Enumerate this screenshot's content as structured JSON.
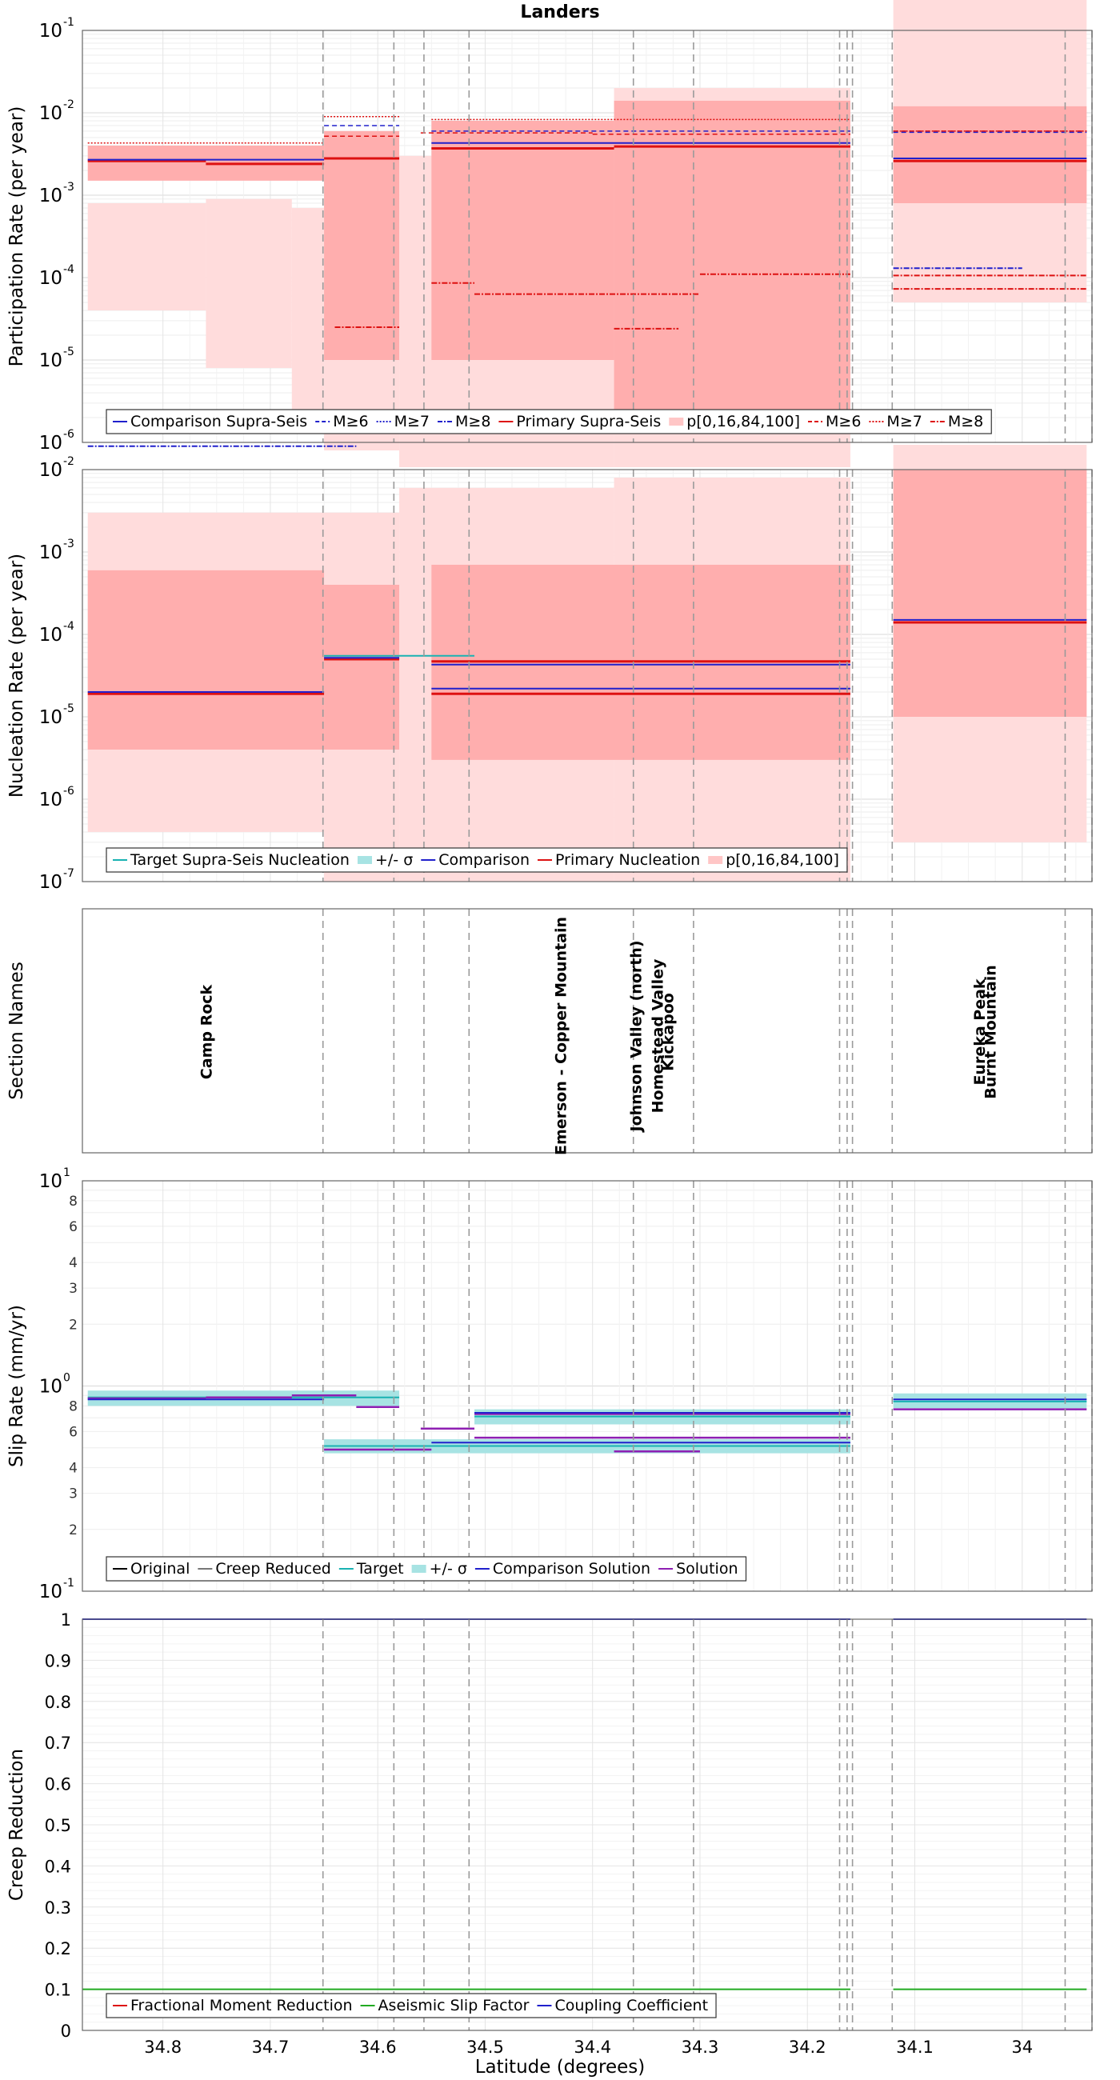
{
  "chart_data": [
    {
      "type": "line",
      "id": "participation",
      "title": "Landers",
      "ylabel": "Participation Rate (per year)",
      "yscale": "log",
      "ylim_exp": [
        -6,
        -1
      ],
      "ytick_labels": [
        "10",
        "10",
        "10",
        "10",
        "10",
        "10"
      ],
      "ytick_exponents": [
        "-6",
        "-5",
        "-4",
        "-3",
        "-2",
        "-1"
      ],
      "legend": {
        "position": "bottom",
        "entries": [
          {
            "label": "Comparison Supra-Seis",
            "color": "#2020cc",
            "dash": "solid"
          },
          {
            "label": "M≥6",
            "color": "#2020cc",
            "dash": "dash"
          },
          {
            "label": "M≥7",
            "color": "#2020cc",
            "dash": "dot"
          },
          {
            "label": "M≥8",
            "color": "#2020cc",
            "dash": "dashdot"
          },
          {
            "label": "Primary Supra-Seis",
            "color": "#dd1111",
            "dash": "solid"
          },
          {
            "label": "p[0,16,84,100]",
            "color": "#ffc6c6",
            "dash": "box"
          },
          {
            "label": "M≥6",
            "color": "#dd1111",
            "dash": "dash"
          },
          {
            "label": "M≥7",
            "color": "#dd1111",
            "dash": "dot"
          },
          {
            "label": "M≥8",
            "color": "#dd1111",
            "dash": "dashdot"
          }
        ]
      },
      "series": [
        {
          "name": "Primary Supra-Seis",
          "color": "#dd1111",
          "width": 3,
          "segments": [
            [
              34.87,
              34.76,
              0.0026
            ],
            [
              34.76,
              34.65,
              0.0024
            ],
            [
              34.65,
              34.58,
              0.0028
            ],
            [
              34.55,
              34.38,
              0.0037
            ],
            [
              34.38,
              34.16,
              0.0039
            ],
            [
              34.12,
              33.94,
              0.0026
            ]
          ]
        },
        {
          "name": "Comparison Supra-Seis",
          "color": "#2020cc",
          "width": 2,
          "segments": [
            [
              34.87,
              34.65,
              0.0027
            ],
            [
              34.55,
              34.16,
              0.0043
            ],
            [
              34.12,
              33.94,
              0.0028
            ]
          ]
        },
        {
          "name": "Primary M≥6",
          "color": "#dd1111",
          "width": 1.5,
          "dash": "6,4",
          "segments": [
            [
              34.65,
              34.58,
              0.0052
            ],
            [
              34.56,
              34.4,
              0.0057
            ],
            [
              34.4,
              34.16,
              0.0055
            ],
            [
              34.12,
              33.94,
              0.006
            ]
          ]
        },
        {
          "name": "Comparison M≥6",
          "color": "#2020cc",
          "width": 1.5,
          "dash": "6,4",
          "segments": [
            [
              34.65,
              34.58,
              0.007
            ],
            [
              34.55,
              34.16,
              0.006
            ],
            [
              34.12,
              33.94,
              0.0058
            ]
          ]
        },
        {
          "name": "Primary M≥7",
          "color": "#dd1111",
          "width": 1.5,
          "dash": "2,2",
          "segments": [
            [
              34.87,
              34.65,
              0.0043
            ],
            [
              34.65,
              34.58,
              0.009
            ],
            [
              34.55,
              34.16,
              0.0083
            ],
            [
              34.12,
              33.94,
              0.006
            ]
          ]
        },
        {
          "name": "Primary M≥8",
          "color": "#dd1111",
          "width": 2,
          "dash": "7,2,2,2",
          "segments": [
            [
              34.64,
              34.58,
              2.5e-05
            ],
            [
              34.55,
              34.51,
              8.6e-05
            ],
            [
              34.51,
              34.3,
              6.3e-05
            ],
            [
              34.38,
              34.32,
              2.4e-05
            ],
            [
              34.3,
              34.16,
              0.00011
            ],
            [
              34.12,
              33.94,
              7.3e-05
            ],
            [
              34.12,
              33.94,
              0.000106
            ]
          ]
        },
        {
          "name": "Comparison M≥8",
          "color": "#2020cc",
          "width": 2,
          "dash": "7,2,2,2",
          "segments": [
            [
              34.87,
              34.62,
              9e-07
            ],
            [
              34.12,
              34.0,
              0.00013
            ]
          ]
        }
      ],
      "bands_outer": [
        [
          34.87,
          34.76,
          4e-05,
          0.0008
        ],
        [
          34.76,
          34.68,
          8e-06,
          0.0009
        ],
        [
          34.68,
          34.65,
          2e-06,
          0.0007
        ],
        [
          34.65,
          34.58,
          8e-07,
          0.0008
        ],
        [
          34.58,
          34.38,
          5e-07,
          0.003
        ],
        [
          34.38,
          34.16,
          5e-07,
          0.02
        ],
        [
          34.12,
          33.94,
          5e-05,
          0.3
        ]
      ],
      "bands_inner": [
        [
          34.87,
          34.65,
          0.0015,
          0.004
        ],
        [
          34.65,
          34.58,
          1e-05,
          0.006
        ],
        [
          34.55,
          34.38,
          1e-05,
          0.008
        ],
        [
          34.38,
          34.16,
          2e-06,
          0.014
        ],
        [
          34.12,
          33.94,
          0.0008,
          0.012
        ]
      ]
    },
    {
      "type": "line",
      "id": "nucleation",
      "ylabel": "Nucleation Rate (per year)",
      "yscale": "log",
      "ylim_exp": [
        -7,
        -2
      ],
      "ytick_labels": [
        "10",
        "10",
        "10",
        "10",
        "10",
        "10"
      ],
      "ytick_exponents": [
        "-7",
        "-6",
        "-5",
        "-4",
        "-3",
        "-2"
      ],
      "legend": {
        "position": "bottom",
        "entries": [
          {
            "label": "Target Supra-Seis Nucleation",
            "color": "#19b2b2",
            "dash": "solid"
          },
          {
            "label": "+/- σ",
            "color": "#a7e3e3",
            "dash": "box"
          },
          {
            "label": "Comparison",
            "color": "#2020cc",
            "dash": "solid"
          },
          {
            "label": "Primary Nucleation",
            "color": "#dd1111",
            "dash": "solid"
          },
          {
            "label": "p[0,16,84,100]",
            "color": "#ffc6c6",
            "dash": "box"
          }
        ]
      },
      "series": [
        {
          "name": "Primary Nucleation",
          "color": "#dd1111",
          "width": 3,
          "segments": [
            [
              34.87,
              34.65,
              1.9e-05
            ],
            [
              34.65,
              34.58,
              5e-05
            ],
            [
              34.55,
              34.16,
              1.9e-05
            ],
            [
              34.55,
              34.16,
              4.7e-05
            ],
            [
              34.12,
              33.94,
              0.00014
            ]
          ]
        },
        {
          "name": "Comparison",
          "color": "#2020cc",
          "width": 2,
          "segments": [
            [
              34.87,
              34.65,
              2e-05
            ],
            [
              34.65,
              34.58,
              5.2e-05
            ],
            [
              34.55,
              34.16,
              2.2e-05
            ],
            [
              34.55,
              34.16,
              4.3e-05
            ],
            [
              34.12,
              33.94,
              0.00015
            ]
          ]
        },
        {
          "name": "Target Supra-Seis Nucleation",
          "color": "#19b2b2",
          "width": 2,
          "segments": [
            [
              34.65,
              34.51,
              5.5e-05
            ]
          ]
        }
      ],
      "bands_outer": [
        [
          34.87,
          34.65,
          4e-07,
          0.003
        ],
        [
          34.65,
          34.58,
          1e-07,
          0.003
        ],
        [
          34.58,
          34.38,
          1e-07,
          0.006
        ],
        [
          34.38,
          34.16,
          1e-07,
          0.008
        ],
        [
          34.12,
          33.94,
          3e-07,
          0.02
        ]
      ],
      "bands_inner": [
        [
          34.87,
          34.65,
          4e-06,
          0.0006
        ],
        [
          34.65,
          34.58,
          4e-06,
          0.0004
        ],
        [
          34.55,
          34.16,
          3e-06,
          0.0007
        ],
        [
          34.12,
          33.94,
          1e-05,
          0.01
        ]
      ]
    },
    {
      "type": "table",
      "id": "sections",
      "ylabel": "Section Names",
      "labels": [
        {
          "text": "Camp Rock",
          "lat": 34.76
        },
        {
          "text": "Emerson - Copper Mountain",
          "lat": 34.43
        },
        {
          "text": "Johnson Valley (north)",
          "lat": 34.36
        },
        {
          "text": "Homestead Valley",
          "lat": 34.34
        },
        {
          "text": "Kickapoo",
          "lat": 34.33
        },
        {
          "text": "Eureka Peak",
          "lat": 34.04
        },
        {
          "text": "Burnt Mountain",
          "lat": 34.03
        }
      ]
    },
    {
      "type": "line",
      "id": "sliprate",
      "ylabel": "Slip Rate (mm/yr)",
      "yscale": "log",
      "ylim_exp": [
        -1,
        1
      ],
      "ytick_labels": [
        "10",
        "10",
        "10"
      ],
      "ytick_exponents": [
        "-1",
        "0",
        "1"
      ],
      "minor_tick_labels": [
        "2",
        "3",
        "4",
        "6",
        "8",
        "2",
        "3",
        "4",
        "6",
        "8"
      ],
      "legend": {
        "position": "bottom",
        "entries": [
          {
            "label": "Original",
            "color": "#000000",
            "dash": "solid"
          },
          {
            "label": "Creep Reduced",
            "color": "#777777",
            "dash": "solid"
          },
          {
            "label": "Target",
            "color": "#19b2b2",
            "dash": "solid"
          },
          {
            "label": "+/- σ",
            "color": "#a7e3e3",
            "dash": "box"
          },
          {
            "label": "Comparison Solution",
            "color": "#2020cc",
            "dash": "solid"
          },
          {
            "label": "Solution",
            "color": "#8e1fb3",
            "dash": "solid"
          }
        ]
      },
      "series": [
        {
          "name": "Target",
          "color": "#19b2b2",
          "width": 2,
          "segments": [
            [
              34.87,
              34.58,
              0.88
            ],
            [
              34.65,
              34.16,
              0.51
            ],
            [
              34.51,
              34.16,
              0.71
            ],
            [
              34.12,
              33.94,
              0.84
            ]
          ]
        },
        {
          "name": "Solution",
          "color": "#8e1fb3",
          "width": 2.5,
          "segments": [
            [
              34.87,
              34.76,
              0.87
            ],
            [
              34.76,
              34.68,
              0.88
            ],
            [
              34.68,
              34.62,
              0.9
            ],
            [
              34.62,
              34.58,
              0.79
            ],
            [
              34.65,
              34.58,
              0.49
            ],
            [
              34.58,
              34.55,
              0.49
            ],
            [
              34.56,
              34.51,
              0.62
            ],
            [
              34.51,
              34.16,
              0.73
            ],
            [
              34.51,
              34.16,
              0.56
            ],
            [
              34.38,
              34.3,
              0.48
            ],
            [
              34.12,
              33.94,
              0.77
            ]
          ]
        },
        {
          "name": "Comparison Solution",
          "color": "#2020cc",
          "width": 2,
          "segments": [
            [
              34.87,
              34.65,
              0.86
            ],
            [
              34.55,
              34.16,
              0.53
            ],
            [
              34.51,
              34.16,
              0.74
            ],
            [
              34.12,
              33.94,
              0.86
            ]
          ]
        }
      ],
      "bands": [
        [
          34.87,
          34.58,
          0.8,
          0.95
        ],
        [
          34.65,
          34.16,
          0.47,
          0.55
        ],
        [
          34.51,
          34.16,
          0.65,
          0.77
        ],
        [
          34.12,
          33.94,
          0.78,
          0.92
        ]
      ]
    },
    {
      "type": "line",
      "id": "creep",
      "ylabel": "Creep Reduction",
      "xlabel": "Latitude (degrees)",
      "ylim": [
        0,
        1
      ],
      "ytick_labels": [
        "0",
        "0.1",
        "0.2",
        "0.3",
        "0.4",
        "0.5",
        "0.6",
        "0.7",
        "0.8",
        "0.9",
        "1"
      ],
      "xtick_labels": [
        "34.8",
        "34.7",
        "34.6",
        "34.5",
        "34.4",
        "34.3",
        "34.2",
        "34.1",
        "34"
      ],
      "xlim": [
        34.875,
        33.94
      ],
      "legend": {
        "position": "bottom",
        "entries": [
          {
            "label": "Fractional Moment Reduction",
            "color": "#dd1111",
            "dash": "solid"
          },
          {
            "label": "Aseismic Slip Factor",
            "color": "#22aa22",
            "dash": "solid"
          },
          {
            "label": "Coupling Coefficient",
            "color": "#2020cc",
            "dash": "solid"
          }
        ]
      },
      "series": [
        {
          "name": "Coupling Coefficient",
          "color": "#2020cc",
          "width": 2,
          "segments": [
            [
              34.875,
              34.16,
              1
            ],
            [
              34.12,
              33.94,
              1
            ]
          ]
        },
        {
          "name": "Aseismic Slip Factor",
          "color": "#22aa22",
          "width": 2,
          "segments": [
            [
              34.875,
              34.16,
              0.1
            ],
            [
              34.12,
              33.94,
              0.1
            ]
          ]
        }
      ]
    }
  ],
  "section_boundaries_lat": [
    34.651,
    34.585,
    34.557,
    34.515,
    34.362,
    34.306,
    34.17,
    34.163,
    34.158,
    34.121,
    33.96,
    33.935
  ]
}
